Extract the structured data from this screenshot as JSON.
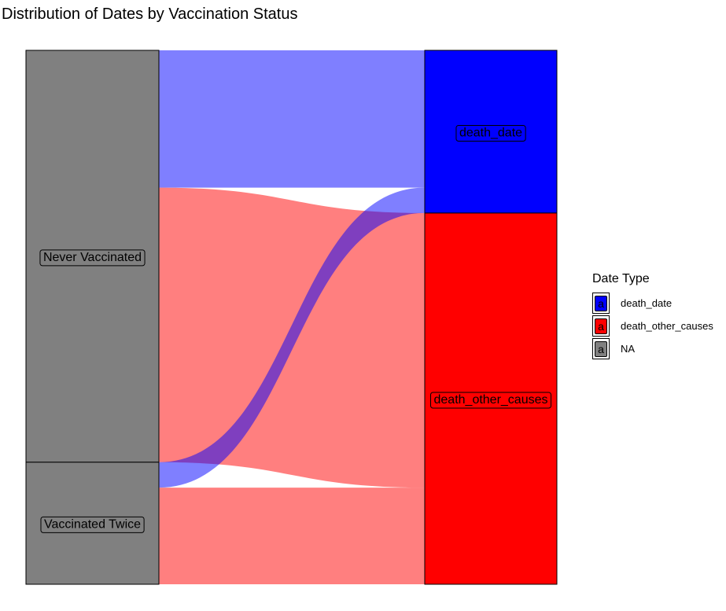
{
  "chart_data": {
    "type": "alluvial",
    "title": "Distribution of Dates by Vaccination Status",
    "axes": [
      "Vaccination Status",
      "Date Type"
    ],
    "left_strata": [
      "Never Vaccinated",
      "Vaccinated Twice"
    ],
    "right_strata": [
      "death_date",
      "death_other_causes"
    ],
    "flows": [
      {
        "from": "Never Vaccinated",
        "to": "death_date",
        "value": 27,
        "fill": "death_date"
      },
      {
        "from": "Never Vaccinated",
        "to": "death_other_causes",
        "value": 54,
        "fill": "death_other_causes"
      },
      {
        "from": "Vaccinated Twice",
        "to": "death_date",
        "value": 5,
        "fill": "death_date"
      },
      {
        "from": "Vaccinated Twice",
        "to": "death_other_causes",
        "value": 19,
        "fill": "death_other_causes"
      }
    ],
    "legend": {
      "title": "Date Type",
      "position": "right",
      "items": [
        {
          "label": "death_date",
          "color": "#0000ff",
          "key": "a"
        },
        {
          "label": "death_other_causes",
          "color": "#ff0000",
          "key": "a"
        },
        {
          "label": "NA",
          "color": "#808080",
          "key": "a"
        }
      ]
    },
    "colors": {
      "left_stratum": "#808080",
      "death_date": "#0000ff",
      "death_other_causes": "#ff0000",
      "flow_opacity": 0.5
    }
  }
}
